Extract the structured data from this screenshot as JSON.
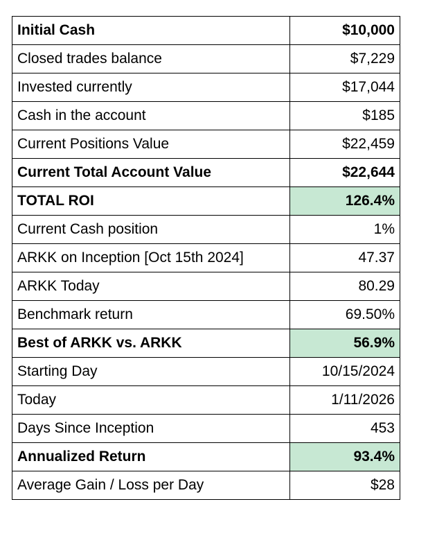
{
  "table": {
    "rows": [
      [
        "Initial Cash",
        "$10,000"
      ],
      [
        "Closed trades balance",
        "$7,229"
      ],
      [
        "Invested currently",
        "$17,044"
      ],
      [
        "Cash in the account",
        "$185"
      ],
      [
        "Current Positions Value",
        "$22,459"
      ],
      [
        "Current Total Account Value",
        "$22,644"
      ],
      [
        "TOTAL ROI",
        "126.4%"
      ],
      [
        "Current Cash position",
        "1%"
      ],
      [
        "ARKK on Inception [Oct 15th 2024]",
        "47.37"
      ],
      [
        "ARKK Today",
        "80.29"
      ],
      [
        "Benchmark return",
        "69.50%"
      ],
      [
        "Best of ARKK vs. ARKK",
        "56.9%"
      ],
      [
        "Starting Day",
        "10/15/2024"
      ],
      [
        "Today",
        "1/11/2026"
      ],
      [
        "Days Since Inception",
        "453"
      ],
      [
        "Annualized Return",
        "93.4%"
      ],
      [
        "Average Gain / Loss per Day",
        "$28"
      ]
    ]
  }
}
